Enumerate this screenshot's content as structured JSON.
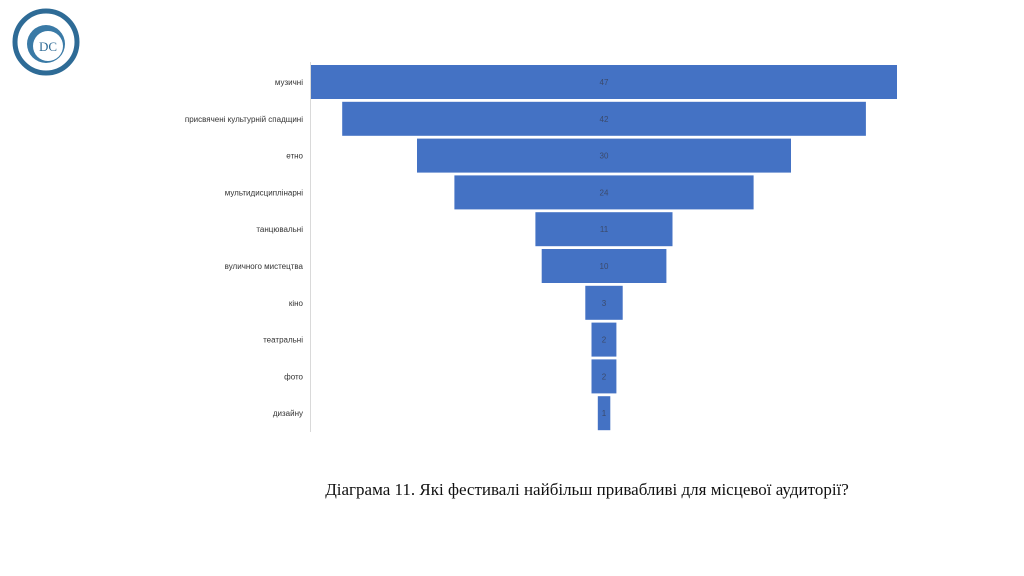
{
  "logo": {
    "letters": "DC",
    "ring_text": "Democracy Development Center"
  },
  "chart_data": {
    "type": "bar",
    "style": "funnel",
    "categories": [
      "музичні",
      "присвячені культурній спадщині",
      "етно",
      "мультидисциплінарні",
      "танцювальні",
      "вуличного мистецтва",
      "кіно",
      "театральні",
      "фото",
      "дизайну"
    ],
    "values": [
      47,
      42,
      30,
      24,
      11,
      10,
      3,
      2,
      2,
      1
    ],
    "bar_color": "#4472c4",
    "title": "",
    "xlabel": "",
    "ylabel": ""
  },
  "caption": "Діаграма 11. Які фестивалі найбільш привабливі для місцевої аудиторії?"
}
